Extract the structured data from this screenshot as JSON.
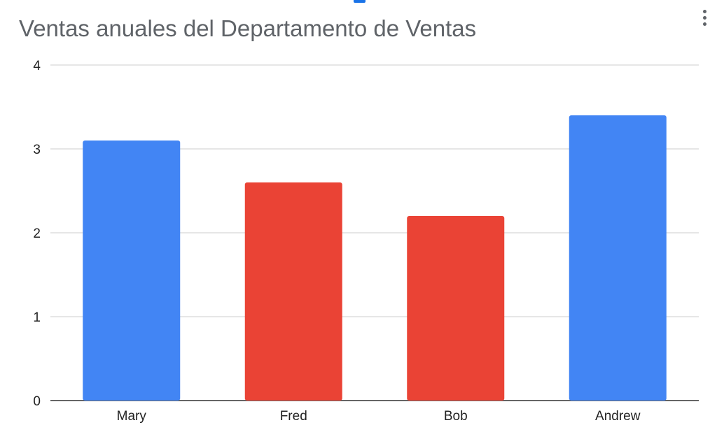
{
  "header": {
    "menu_icon": "more-vert-icon"
  },
  "colors": {
    "blue": "#4285f4",
    "red": "#ea4335",
    "gridline": "#cccccc",
    "axis": "#333333"
  },
  "chart_data": {
    "type": "bar",
    "title": "Ventas anuales del Departamento de Ventas",
    "xlabel": "",
    "ylabel": "",
    "categories": [
      "Mary",
      "Fred",
      "Bob",
      "Andrew"
    ],
    "values": [
      3.1,
      2.6,
      2.2,
      3.4
    ],
    "bar_colors": [
      "#4285f4",
      "#ea4335",
      "#ea4335",
      "#4285f4"
    ],
    "ylim": [
      0,
      4
    ],
    "yticks": [
      "0",
      "1",
      "2",
      "3",
      "4"
    ],
    "grid": true,
    "legend": "none"
  }
}
